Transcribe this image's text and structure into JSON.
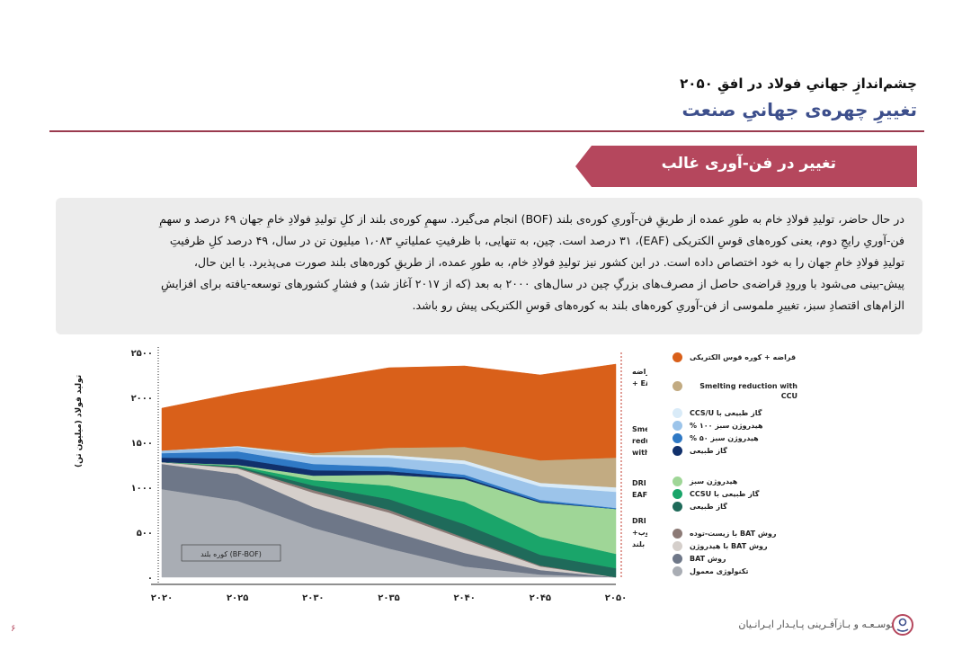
{
  "header": {
    "title": "چشم‌اندازِ جهانیِ فولاد در افقِ ۲۰۵۰",
    "subtitle": "تغییرِ چهره‌ی جهانیِ صنعت"
  },
  "section": {
    "banner": "تغییر در فن-آوری غالب"
  },
  "paragraph": {
    "lines": [
      "در حال حاضر، تولیدِ فولادِ خام به طورِ عمده از طریقِ فن-آوریِ کوره‌ی بلند (BOF) انجام می‌گیرد. سهمِ کوره‌ی بلند از کلِ تولیدِ فولادِ خامِ جهان ۶۹ درصد و سهمِ",
      "فن-آوریِ رایجِ دوم، یعنی کوره‌های قوسِ الکتریکی (EAF)، ۳۱ درصد است. چین، به تنهایی، با ظرفیتِ عملیاتیِ ۱،۰۸۳ میلیون تن در سال، ۴۹ درصد کلِ ظرفیتِ",
      "تولیدِ فولادِ خامِ جهان را به خود اختصاص داده است. در این کشور نیز تولیدِ فولادِ خام، به طورِ عمده، از طریقِ کوره‌های بلند صورت می‌پذیرد. با این حال،",
      "پیش-بینی می‌شود با ورودِ قراضه‌ی حاصل از مصرف‌های بزرگِ چین در سال‌های ۲۰۰۰ به بعد (که از ۲۰۱۷ آغاز شد) و فشارِ کشورهای توسعه-یافته برای افزایشِ",
      "الزام‌های اقتصادِ سبز، تغییرِ ملموسی از فن-آوریِ کوره‌های بلند به کوره‌های قوسِ الکتریکی پیش رو باشد."
    ]
  },
  "chart_data": {
    "type": "area",
    "ylabel": "تولید فولاد (میلیون تن)",
    "x_ticks": [
      "۲۰۲۰",
      "۲۰۲۵",
      "۲۰۳۰",
      "۲۰۳۵",
      "۲۰۴۰",
      "۲۰۴۵",
      "۲۰۵۰"
    ],
    "y_ticks": [
      "۰",
      "۵۰۰",
      "۱۰۰۰",
      "۱۵۰۰",
      "۲۰۰۰",
      "۲۵۰۰"
    ],
    "x": [
      2020,
      2025,
      2030,
      2035,
      2040,
      2045,
      2050
    ],
    "ylim": [
      0,
      2500
    ],
    "annotation": "کوره بلند (BF-BOF)",
    "group_labels": [
      {
        "label": "قراضه + EAF"
      },
      {
        "label": "Smelting reduction with CCU"
      },
      {
        "label": "DRI + EAF"
      },
      {
        "label": "DRI +ذوب+ کوره بلند"
      }
    ],
    "series": [
      {
        "name": "تکنولوژی معمول",
        "color": "#a9adb4",
        "values": [
          980,
          850,
          550,
          320,
          120,
          30,
          0
        ]
      },
      {
        "name": "روش BAT",
        "color": "#6e7788",
        "values": [
          280,
          300,
          230,
          200,
          150,
          50,
          0
        ]
      },
      {
        "name": "روش BAT با هیدروژن",
        "color": "#d5cfcb",
        "values": [
          20,
          60,
          160,
          200,
          150,
          40,
          0
        ]
      },
      {
        "name": "روش BAT با زیست-توده",
        "color": "#8c7a76",
        "values": [
          0,
          10,
          30,
          30,
          20,
          10,
          0
        ]
      },
      {
        "name": "گاز طبیعی",
        "color": "#1f6a5a",
        "values": [
          0,
          10,
          50,
          120,
          150,
          120,
          100
        ]
      },
      {
        "name": "گاز طبیعی با CCSU",
        "color": "#1aa56a",
        "values": [
          0,
          10,
          60,
          150,
          250,
          200,
          160
        ]
      },
      {
        "name": "هیدروژن سبز",
        "color": "#9fd697",
        "values": [
          0,
          10,
          50,
          120,
          250,
          380,
          500
        ]
      },
      {
        "name": "گاز طبیعی",
        "color": "#11306b",
        "values": [
          50,
          70,
          60,
          40,
          20,
          10,
          0
        ]
      },
      {
        "name": "هیدروژن سبز ۵۰ %",
        "color": "#2f79c5",
        "values": [
          50,
          80,
          70,
          50,
          30,
          20,
          10
        ]
      },
      {
        "name": "هیدروژن سبز ۱۰۰ %",
        "color": "#9cc4ea",
        "values": [
          30,
          50,
          80,
          100,
          120,
          150,
          180
        ]
      },
      {
        "name": "گاز طبیعی با CCS/U",
        "color": "#d9ebf8",
        "values": [
          0,
          10,
          20,
          30,
          40,
          40,
          50
        ]
      },
      {
        "name": "Smelting reduction with CCU",
        "color": "#c2ab82",
        "values": [
          0,
          0,
          20,
          80,
          150,
          250,
          330
        ]
      },
      {
        "name": "قراضه + کوره قوس الکتریکی",
        "color": "#d9601a",
        "values": [
          470,
          590,
          810,
          890,
          900,
          950,
          1040
        ]
      }
    ]
  },
  "legend": [
    {
      "label": "قراضه + کوره قوس الکتریکی",
      "color": "#d9601a"
    },
    {
      "label": "Smelting reduction with CCU",
      "color": "#c2ab82"
    },
    {
      "label": "گاز طبیعی با CCS/U",
      "color": "#d9ebf8"
    },
    {
      "label": "هیدروژن سبز ۱۰۰ %",
      "color": "#9cc4ea"
    },
    {
      "label": "هیدروژن سبز ۵۰ %",
      "color": "#2f79c5"
    },
    {
      "label": "گاز طبیعی",
      "color": "#11306b"
    },
    {
      "label": "هیدروژن سبز",
      "color": "#9fd697"
    },
    {
      "label": "گاز طبیعی با CCSU",
      "color": "#1aa56a"
    },
    {
      "label": "گاز طبیعی",
      "color": "#1f6a5a"
    },
    {
      "label": "روش BAT با زیست-توده",
      "color": "#8c7a76"
    },
    {
      "label": "روش BAT با هیدروژن",
      "color": "#d5cfcb"
    },
    {
      "label": "روش BAT",
      "color": "#6e7788"
    },
    {
      "label": "تکنولوژی معمول",
      "color": "#a9adb4"
    }
  ],
  "footer": {
    "brand": "توسـعـه و بـازآفـرینی پـایـدار ایـرانـیان",
    "page": "۶"
  }
}
